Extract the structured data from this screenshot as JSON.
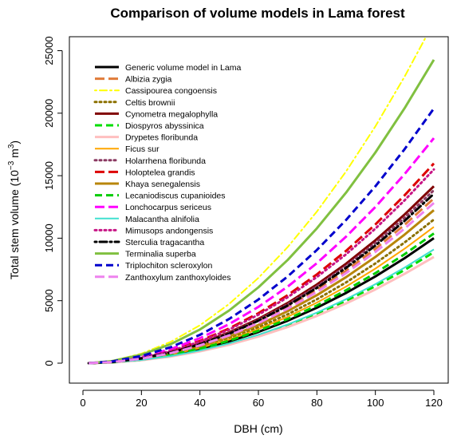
{
  "chart_data": {
    "type": "line",
    "title": "Comparison of volume models in Lama forest",
    "xlabel": "DBH (cm)",
    "ylabel_main": "Total stem volume (10",
    "ylabel_exp": "−3",
    "ylabel_unit": " m",
    "ylabel_unit_exp": "3",
    "ylabel_close": ")",
    "xlim": [
      0,
      120
    ],
    "ylim": [
      0,
      26500
    ],
    "x_ticks": [
      0,
      20,
      40,
      60,
      80,
      100,
      120
    ],
    "y_ticks": [
      0,
      5000,
      10000,
      15000,
      20000,
      25000
    ],
    "x": [
      2,
      10,
      20,
      30,
      40,
      50,
      60,
      70,
      80,
      90,
      100,
      110,
      120
    ],
    "legend_position": "top-left",
    "series": [
      {
        "name": "Generic volume model in Lama",
        "color": "#000000",
        "dash": "solid",
        "width": 3,
        "values": [
          2,
          69,
          278,
          625,
          1110,
          1735,
          2500,
          3400,
          4440,
          5620,
          6940,
          8400,
          10000
        ]
      },
      {
        "name": "Albizia zygia",
        "color": "#E07B39",
        "dash": "longdash",
        "width": 3,
        "values": [
          2,
          92,
          366,
          824,
          1464,
          2288,
          3295,
          4485,
          5857,
          7414,
          9152,
          11075,
          13180
        ]
      },
      {
        "name": "Cassipourea congoensis",
        "color": "#FFFF00",
        "dash": "dotdash",
        "width": 2,
        "values": [
          4,
          189,
          758,
          1705,
          3031,
          4736,
          6819,
          9282,
          12124,
          15344,
          18944,
          22922,
          27280
        ]
      },
      {
        "name": "Celtis brownii",
        "color": "#8B7000",
        "dash": "dotted",
        "width": 3,
        "values": [
          2,
          80,
          319,
          718,
          1277,
          1996,
          2875,
          3910,
          5108,
          6463,
          7980,
          9655,
          11490
        ]
      },
      {
        "name": "Cynometra megalophylla",
        "color": "#800000",
        "dash": "solid",
        "width": 3,
        "values": [
          2,
          98,
          393,
          885,
          1573,
          2458,
          3540,
          4818,
          6293,
          7965,
          9833,
          11898,
          14160
        ]
      },
      {
        "name": "Diospyros abyssinica",
        "color": "#00DD00",
        "dash": "dashed",
        "width": 3,
        "values": [
          1,
          61,
          246,
          555,
          986,
          1540,
          2219,
          3020,
          3944,
          4992,
          6163,
          7457,
          8875
        ]
      },
      {
        "name": "Drypetes floribunda",
        "color": "#FFBFBF",
        "dash": "solid",
        "width": 3,
        "values": [
          1,
          59,
          236,
          531,
          944,
          1476,
          2125,
          2893,
          3778,
          4782,
          5903,
          7143,
          8500
        ]
      },
      {
        "name": "Ficus sur",
        "color": "#FFA500",
        "dash": "solid",
        "width": 2,
        "values": [
          2,
          76,
          303,
          681,
          1211,
          1892,
          2725,
          3709,
          4844,
          6131,
          7569,
          9159,
          10900
        ]
      },
      {
        "name": "Holarrhena floribunda",
        "color": "#8B3A62",
        "dash": "dotted",
        "width": 3,
        "values": [
          2,
          96,
          385,
          865,
          1538,
          2403,
          3460,
          4710,
          6151,
          7785,
          9611,
          11629,
          13840
        ]
      },
      {
        "name": "Holoptelea grandis",
        "color": "#DD0000",
        "dash": "longdash",
        "width": 3,
        "values": [
          2,
          111,
          444,
          999,
          1776,
          2775,
          3995,
          5438,
          7103,
          8990,
          11099,
          13430,
          15980
        ]
      },
      {
        "name": "Khaya senegalensis",
        "color": "#B8860B",
        "dash": "solid",
        "width": 3,
        "values": [
          2,
          85,
          340,
          765,
          1360,
          2125,
          3060,
          4165,
          5440,
          6885,
          8500,
          10285,
          12240
        ]
      },
      {
        "name": "Lecaniodiscus cupanioides",
        "color": "#00CC00",
        "dash": "dashed",
        "width": 3,
        "values": [
          2,
          72,
          288,
          649,
          1153,
          1801,
          2594,
          3531,
          4612,
          5837,
          7206,
          8719,
          10377
        ]
      },
      {
        "name": "Lonchocarpus sericeus",
        "color": "#FF00FF",
        "dash": "longdash",
        "width": 3,
        "values": [
          3,
          125,
          500,
          1125,
          2000,
          3125,
          4500,
          6125,
          8000,
          10125,
          12500,
          15125,
          18000
        ]
      },
      {
        "name": "Malacantha alnifolia",
        "color": "#40E0D0",
        "dash": "solid",
        "width": 2,
        "values": [
          1,
          63,
          253,
          569,
          1011,
          1580,
          2275,
          3097,
          4045,
          5119,
          6320,
          7647,
          9100
        ]
      },
      {
        "name": "Mimusops andongensis",
        "color": "#C71585",
        "dash": "dotted",
        "width": 3,
        "values": [
          2,
          108,
          431,
          969,
          1722,
          2691,
          3875,
          5274,
          6889,
          8719,
          10764,
          13024,
          15500
        ]
      },
      {
        "name": "Sterculia tragacantha",
        "color": "#000000",
        "dash": "dotdash",
        "width": 3,
        "values": [
          2,
          94,
          376,
          847,
          1506,
          2353,
          3388,
          4611,
          6023,
          7623,
          9411,
          11387,
          13552
        ]
      },
      {
        "name": "Terminalia superba",
        "color": "#80C040",
        "dash": "solid",
        "width": 3,
        "values": [
          3,
          169,
          674,
          1517,
          2697,
          4214,
          6068,
          8259,
          10788,
          13654,
          16856,
          20396,
          24273
        ]
      },
      {
        "name": "Triplochiton scleroxylon",
        "color": "#0000CC",
        "dash": "dashed",
        "width": 3,
        "values": [
          3,
          142,
          566,
          1274,
          2264,
          3538,
          5094,
          6934,
          9057,
          11462,
          14151,
          17123,
          20378
        ]
      },
      {
        "name": "Zanthoxylum zanthoxyloides",
        "color": "#EE82EE",
        "dash": "longdash",
        "width": 3,
        "values": [
          2,
          89,
          356,
          801,
          1424,
          2225,
          3204,
          4361,
          5696,
          7209,
          8900,
          10769,
          12816
        ]
      }
    ]
  }
}
